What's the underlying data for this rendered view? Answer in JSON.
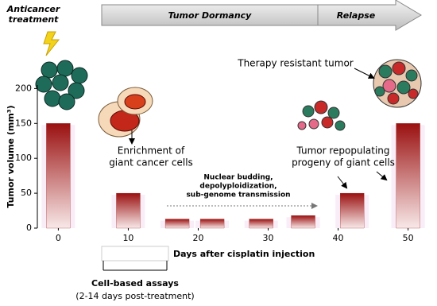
{
  "chart_data": {
    "type": "bar",
    "ylabel": "Tumor volume (mm³)",
    "xlabel": "Days after cisplatin injection",
    "x": [
      0,
      10,
      17,
      22,
      29,
      35,
      42,
      50
    ],
    "values": [
      150,
      50,
      13,
      13,
      13,
      18,
      50,
      150
    ],
    "color": "#a01818",
    "xlim": [
      -3,
      53
    ],
    "ylim": [
      0,
      205
    ],
    "xticks": [
      0,
      10,
      20,
      30,
      40,
      50
    ],
    "yticks": [
      0,
      50,
      100,
      150,
      200
    ],
    "treatment": [
      "Anticancer",
      "treatment"
    ],
    "phases": [
      "Tumor Dormancy",
      "Relapse"
    ],
    "annotations": [
      [
        "Therapy resistant tumor"
      ],
      [
        "Enrichment of",
        "giant cancer cells"
      ],
      [
        "Nuclear budding,",
        "depolyploidization,",
        "sub-genome transmission"
      ],
      [
        "Tumor repopulating",
        "progeny of giant cells"
      ]
    ],
    "assay": {
      "title": "Cell-based assays",
      "note": "(2-14 days post-treatment)"
    }
  }
}
